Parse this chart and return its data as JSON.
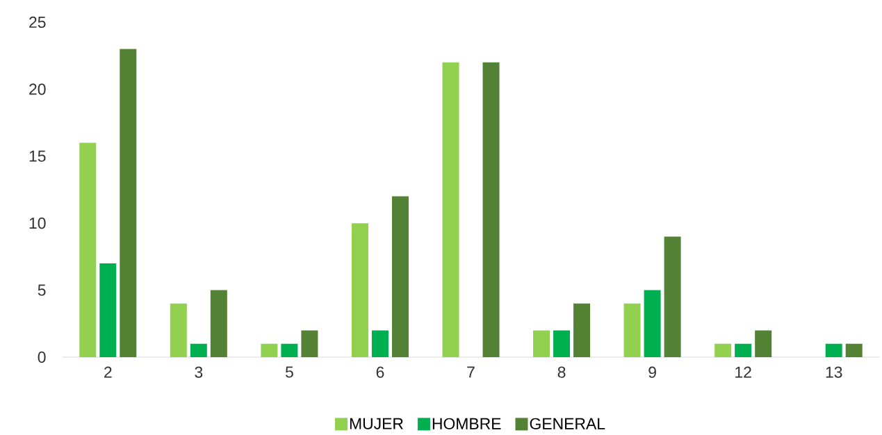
{
  "chart_data": {
    "type": "bar",
    "categories": [
      "2",
      "3",
      "5",
      "6",
      "7",
      "8",
      "9",
      "12",
      "13"
    ],
    "series": [
      {
        "name": "MUJER",
        "color": "#92d050",
        "values": [
          16,
          4,
          1,
          10,
          22,
          2,
          4,
          1,
          0
        ]
      },
      {
        "name": "HOMBRE",
        "color": "#00b050",
        "values": [
          7,
          1,
          1,
          2,
          0,
          2,
          5,
          1,
          1
        ]
      },
      {
        "name": "GENERAL",
        "color": "#548235",
        "values": [
          23,
          5,
          2,
          12,
          22,
          4,
          9,
          2,
          1
        ]
      }
    ],
    "ylim": [
      0,
      25
    ],
    "yticks": [
      0,
      5,
      10,
      15,
      20,
      25
    ],
    "grid": false,
    "legend": "bottom"
  }
}
